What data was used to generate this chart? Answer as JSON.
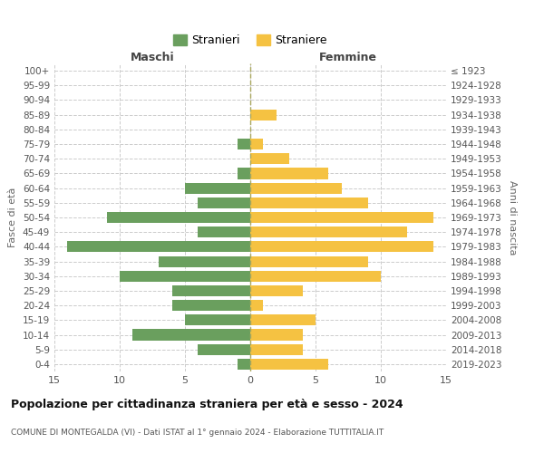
{
  "age_groups": [
    "100+",
    "95-99",
    "90-94",
    "85-89",
    "80-84",
    "75-79",
    "70-74",
    "65-69",
    "60-64",
    "55-59",
    "50-54",
    "45-49",
    "40-44",
    "35-39",
    "30-34",
    "25-29",
    "20-24",
    "15-19",
    "10-14",
    "5-9",
    "0-4"
  ],
  "birth_years": [
    "≤ 1923",
    "1924-1928",
    "1929-1933",
    "1934-1938",
    "1939-1943",
    "1944-1948",
    "1949-1953",
    "1954-1958",
    "1959-1963",
    "1964-1968",
    "1969-1973",
    "1974-1978",
    "1979-1983",
    "1984-1988",
    "1989-1993",
    "1994-1998",
    "1999-2003",
    "2004-2008",
    "2009-2013",
    "2014-2018",
    "2019-2023"
  ],
  "maschi": [
    0,
    0,
    0,
    0,
    0,
    1,
    0,
    1,
    5,
    4,
    11,
    4,
    14,
    7,
    10,
    6,
    6,
    5,
    9,
    4,
    1
  ],
  "femmine": [
    0,
    0,
    0,
    2,
    0,
    1,
    3,
    6,
    7,
    9,
    14,
    12,
    14,
    9,
    10,
    4,
    1,
    5,
    4,
    4,
    6
  ],
  "maschi_color": "#6a9f5e",
  "femmine_color": "#f5c242",
  "background_color": "#ffffff",
  "grid_color": "#cccccc",
  "title": "Popolazione per cittadinanza straniera per età e sesso - 2024",
  "subtitle": "COMUNE DI MONTEGALDA (VI) - Dati ISTAT al 1° gennaio 2024 - Elaborazione TUTTITALIA.IT",
  "xlabel_left": "Maschi",
  "xlabel_right": "Femmine",
  "ylabel_left": "Fasce di età",
  "ylabel_right": "Anni di nascita",
  "legend_stranieri": "Stranieri",
  "legend_straniere": "Straniere",
  "xlim": 15,
  "bar_height": 0.75
}
